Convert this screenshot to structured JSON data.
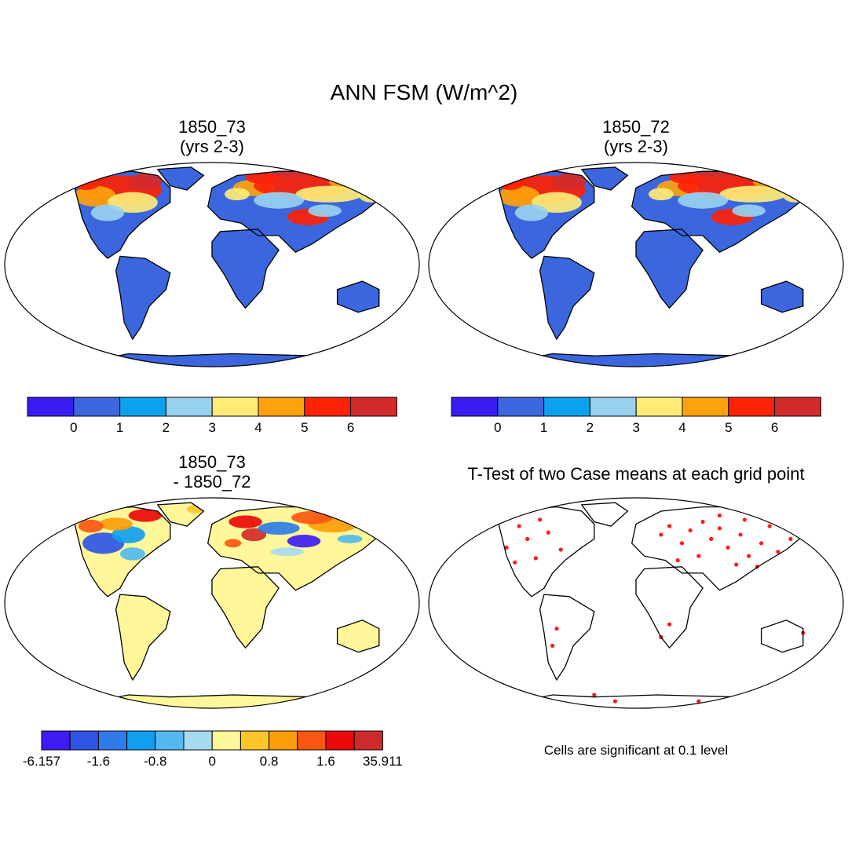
{
  "title": "ANN FSM (W/m^2)",
  "panels": {
    "case1": {
      "title": "1850_73\n(yrs 2-3)"
    },
    "case2": {
      "title": "1850_72\n(yrs 2-3)"
    },
    "diff": {
      "title": "1850_73\n - 1850_72"
    },
    "ttest": {
      "title": "T-Test of two Case means at each grid point",
      "note": "Cells are significant at 0.1 level"
    }
  },
  "colorbars": {
    "case": {
      "colors": [
        "#3a1cf2",
        "#3b66dd",
        "#0aa2ef",
        "#98d1ee",
        "#ffec76",
        "#fda20c",
        "#fd2206",
        "#d22a2a"
      ],
      "labels": [
        "0",
        "1",
        "2",
        "3",
        "4",
        "5",
        "6"
      ]
    },
    "diff": {
      "colors": [
        "#3d1bf5",
        "#2f55e6",
        "#2f7be8",
        "#109ff0",
        "#53b8ef",
        "#a6daf0",
        "#fff799",
        "#fdc52a",
        "#fd9d09",
        "#fb5712",
        "#ec0909",
        "#cf2a2a"
      ],
      "labels": [
        "-6.157",
        "-1.6",
        "-0.8",
        "0",
        "0.8",
        "1.6",
        "35.911"
      ]
    }
  },
  "colors": {
    "land_base": "#3b66dd",
    "diff_base": "#fff799",
    "significance": "#ff1a1a"
  }
}
